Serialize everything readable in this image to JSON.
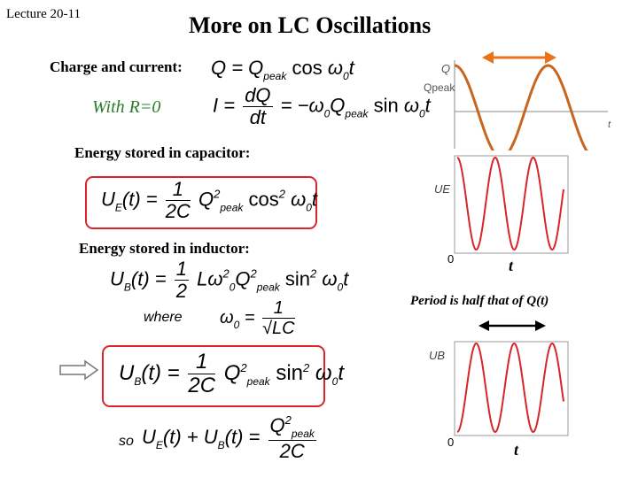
{
  "header": {
    "lecture": "Lecture 20-11",
    "title": "More on LC Oscillations"
  },
  "content": {
    "charge_current_label": "Charge and current:",
    "with_r": "With R=0",
    "energy_cap_label": "Energy stored in capacitor:",
    "energy_ind_label": "Energy stored in inductor:",
    "where_label": "where",
    "so_label": "so",
    "period_note": "Period is half that of Q(t)"
  },
  "plots": {
    "charge": {
      "y_label": "Q",
      "peak_label": "Qpeak",
      "x_label": "t"
    },
    "ue": {
      "y_label": "UE",
      "zero": "0",
      "x_label": "t"
    },
    "ub": {
      "y_label": "UB",
      "zero": "0",
      "x_label": "t"
    }
  },
  "colors": {
    "charge_curve": "#c8661f",
    "energy_curve": "#d7262a",
    "period_arrow": "#e8731a",
    "box": "#d9252a"
  }
}
